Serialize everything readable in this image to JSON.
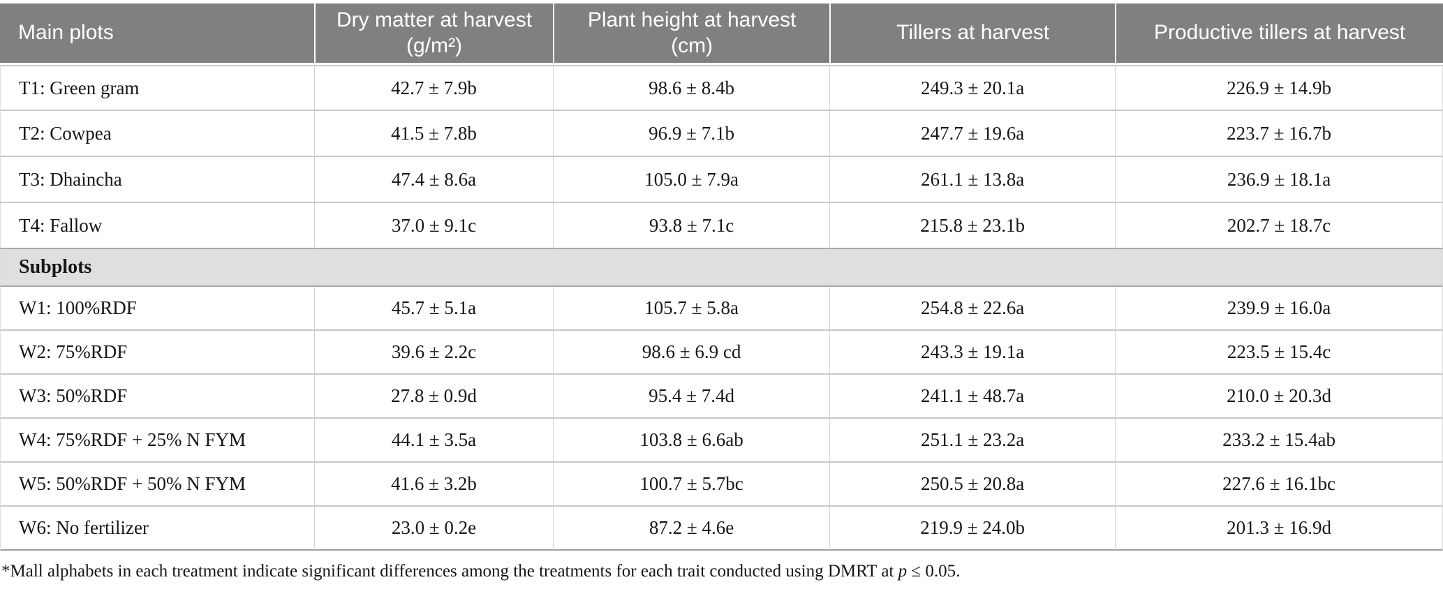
{
  "table": {
    "columns": [
      "Main plots",
      "Dry matter at harvest (g/m²)",
      "Plant height at harvest (cm)",
      "Tillers at harvest",
      "Productive tillers at harvest"
    ],
    "main_plots": [
      {
        "label": "T1: Green gram",
        "values": [
          "42.7 ± 7.9b",
          "98.6 ± 8.4b",
          "249.3 ± 20.1a",
          "226.9 ± 14.9b"
        ]
      },
      {
        "label": "T2: Cowpea",
        "values": [
          "41.5 ± 7.8b",
          "96.9 ± 7.1b",
          "247.7 ± 19.6a",
          "223.7 ± 16.7b"
        ]
      },
      {
        "label": "T3: Dhaincha",
        "values": [
          "47.4 ± 8.6a",
          "105.0 ± 7.9a",
          "261.1 ± 13.8a",
          "236.9 ± 18.1a"
        ]
      },
      {
        "label": "T4: Fallow",
        "values": [
          "37.0 ± 9.1c",
          "93.8 ± 7.1c",
          "215.8 ± 23.1b",
          "202.7 ± 18.7c"
        ]
      }
    ],
    "section_header": "Subplots",
    "subplots": [
      {
        "label": "W1: 100%RDF",
        "values": [
          "45.7 ± 5.1a",
          "105.7 ± 5.8a",
          "254.8 ± 22.6a",
          "239.9 ± 16.0a"
        ]
      },
      {
        "label": "W2: 75%RDF",
        "values": [
          "39.6 ± 2.2c",
          "98.6 ± 6.9 cd",
          "243.3 ± 19.1a",
          "223.5 ± 15.4c"
        ]
      },
      {
        "label": "W3: 50%RDF",
        "values": [
          "27.8 ± 0.9d",
          "95.4 ± 7.4d",
          "241.1 ± 48.7a",
          "210.0 ± 20.3d"
        ]
      },
      {
        "label": "W4: 75%RDF + 25% N FYM",
        "values": [
          "44.1 ± 3.5a",
          "103.8 ± 6.6ab",
          "251.1 ± 23.2a",
          "233.2 ± 15.4ab"
        ]
      },
      {
        "label": "W5: 50%RDF + 50% N FYM",
        "values": [
          "41.6 ± 3.2b",
          "100.7 ± 5.7bc",
          "250.5 ± 20.8a",
          "227.6 ± 16.1bc"
        ]
      },
      {
        "label": "W6: No fertilizer",
        "values": [
          "23.0 ± 0.2e",
          "87.2 ± 4.6e",
          "219.9 ± 24.0b",
          "201.3 ± 16.9d"
        ]
      }
    ]
  },
  "footnote": {
    "prefix": "*Mall alphabets in each treatment indicate significant differences among the treatments for each trait conducted using DMRT at ",
    "p_symbol": "p",
    "suffix": " ≤ 0.05."
  },
  "colors": {
    "header_bg": "#7f8180",
    "header_text": "#ffffff",
    "section_bg": "#e0dfdf",
    "row_border": "#c9c9c9",
    "column_border": "#d2d2d2",
    "section_border": "#a9a9a9",
    "body_text": "#161616"
  }
}
